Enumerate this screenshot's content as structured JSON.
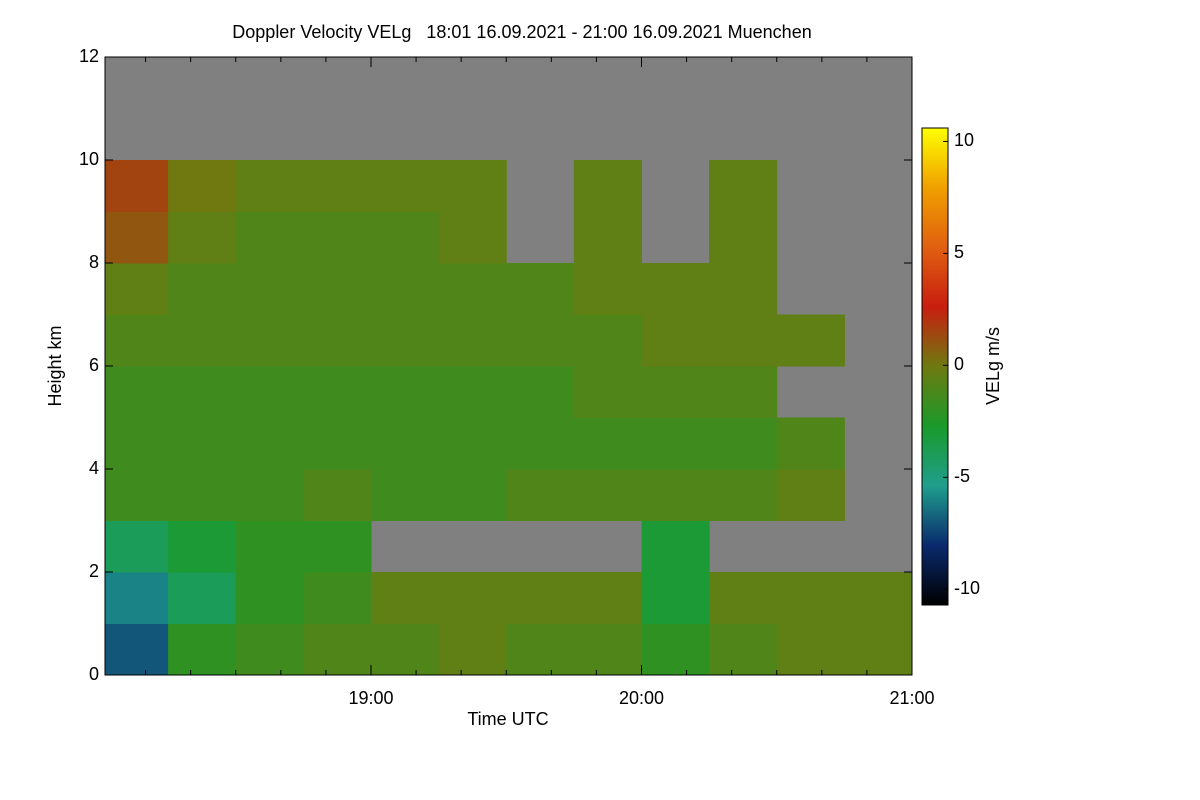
{
  "chart_data": {
    "type": "heatmap",
    "title": "Doppler Velocity VELg   18:01 16.09.2021 - 21:00 16.09.2021 Muenchen",
    "x_label": "Time UTC",
    "y_label": "Height km",
    "colorbar_label": "VELg m/s",
    "x_edges": [
      18.0167,
      18.25,
      18.5,
      18.75,
      19.0,
      19.25,
      19.5,
      19.75,
      20.0,
      20.25,
      20.5,
      20.75,
      21.0
    ],
    "y_edges": [
      0,
      1,
      2,
      3,
      4,
      5,
      6,
      7,
      8,
      9,
      10,
      11,
      12
    ],
    "values": [
      [
        -7,
        -2,
        -1.5,
        -1,
        -1,
        -0.5,
        -1,
        -1,
        -2,
        -1,
        -0.5,
        -0.5
      ],
      [
        -6,
        -4,
        -2,
        -1.5,
        -0.5,
        -0.5,
        -0.5,
        -0.5,
        -3,
        -0.5,
        -0.5,
        -0.5
      ],
      [
        -4,
        -3,
        -2,
        -2,
        null,
        null,
        null,
        null,
        -3,
        null,
        null,
        null
      ],
      [
        -1.5,
        -1.5,
        -1.5,
        -1,
        -1.5,
        -1.5,
        -1,
        -1,
        -1,
        -1,
        -0.5,
        null
      ],
      [
        -1.5,
        -1.5,
        -1.5,
        -1.5,
        -1.5,
        -1.5,
        -1.5,
        -1.5,
        -1.5,
        -1.5,
        -1,
        null
      ],
      [
        -1.5,
        -1.5,
        -1.5,
        -1.5,
        -1.5,
        -1.5,
        -1.5,
        -1,
        -1,
        -1,
        null,
        null
      ],
      [
        -1,
        -1,
        -1,
        -1,
        -1,
        -1,
        -1,
        -1,
        -0.5,
        -0.5,
        -0.5,
        null
      ],
      [
        -0.5,
        -1,
        -1,
        -1,
        -1,
        -1,
        -1,
        -0.5,
        -0.5,
        -0.5,
        null,
        null
      ],
      [
        1,
        -0.5,
        -1,
        -1,
        -1,
        -0.5,
        null,
        -0.5,
        null,
        -0.5,
        null,
        null
      ],
      [
        1.5,
        0,
        -0.5,
        -0.5,
        -0.5,
        -0.5,
        null,
        -0.5,
        null,
        -0.5,
        null,
        null
      ],
      [
        null,
        null,
        null,
        null,
        null,
        null,
        null,
        null,
        null,
        null,
        null,
        null
      ],
      [
        null,
        null,
        null,
        null,
        null,
        null,
        null,
        null,
        null,
        null,
        null,
        null
      ]
    ],
    "missing_color": "#808080",
    "colormap": [
      "#000000",
      "#0a2a6e",
      "#1f9e8c",
      "#1a9a2a",
      "#6e7a10",
      "#c81e10",
      "#e06010",
      "#f0a000",
      "#ffff00"
    ],
    "xlim": [
      18.0167,
      21.0
    ],
    "xticks": [
      {
        "value": 19,
        "label": "19:00"
      },
      {
        "value": 20,
        "label": "20:00"
      },
      {
        "value": 21,
        "label": "21:00"
      }
    ],
    "xminorticks": [
      18.1667,
      18.3333,
      18.5,
      18.6667,
      18.8333,
      19.1667,
      19.3333,
      19.5,
      19.6667,
      19.8333,
      20.1667,
      20.3333,
      20.5,
      20.6667,
      20.8333
    ],
    "ylim": [
      0,
      12
    ],
    "yticks": [
      0,
      2,
      4,
      6,
      8,
      10,
      12
    ],
    "zlim": [
      -10.7,
      10.6
    ],
    "zticks": [
      -10,
      -5,
      0,
      5,
      10
    ]
  }
}
